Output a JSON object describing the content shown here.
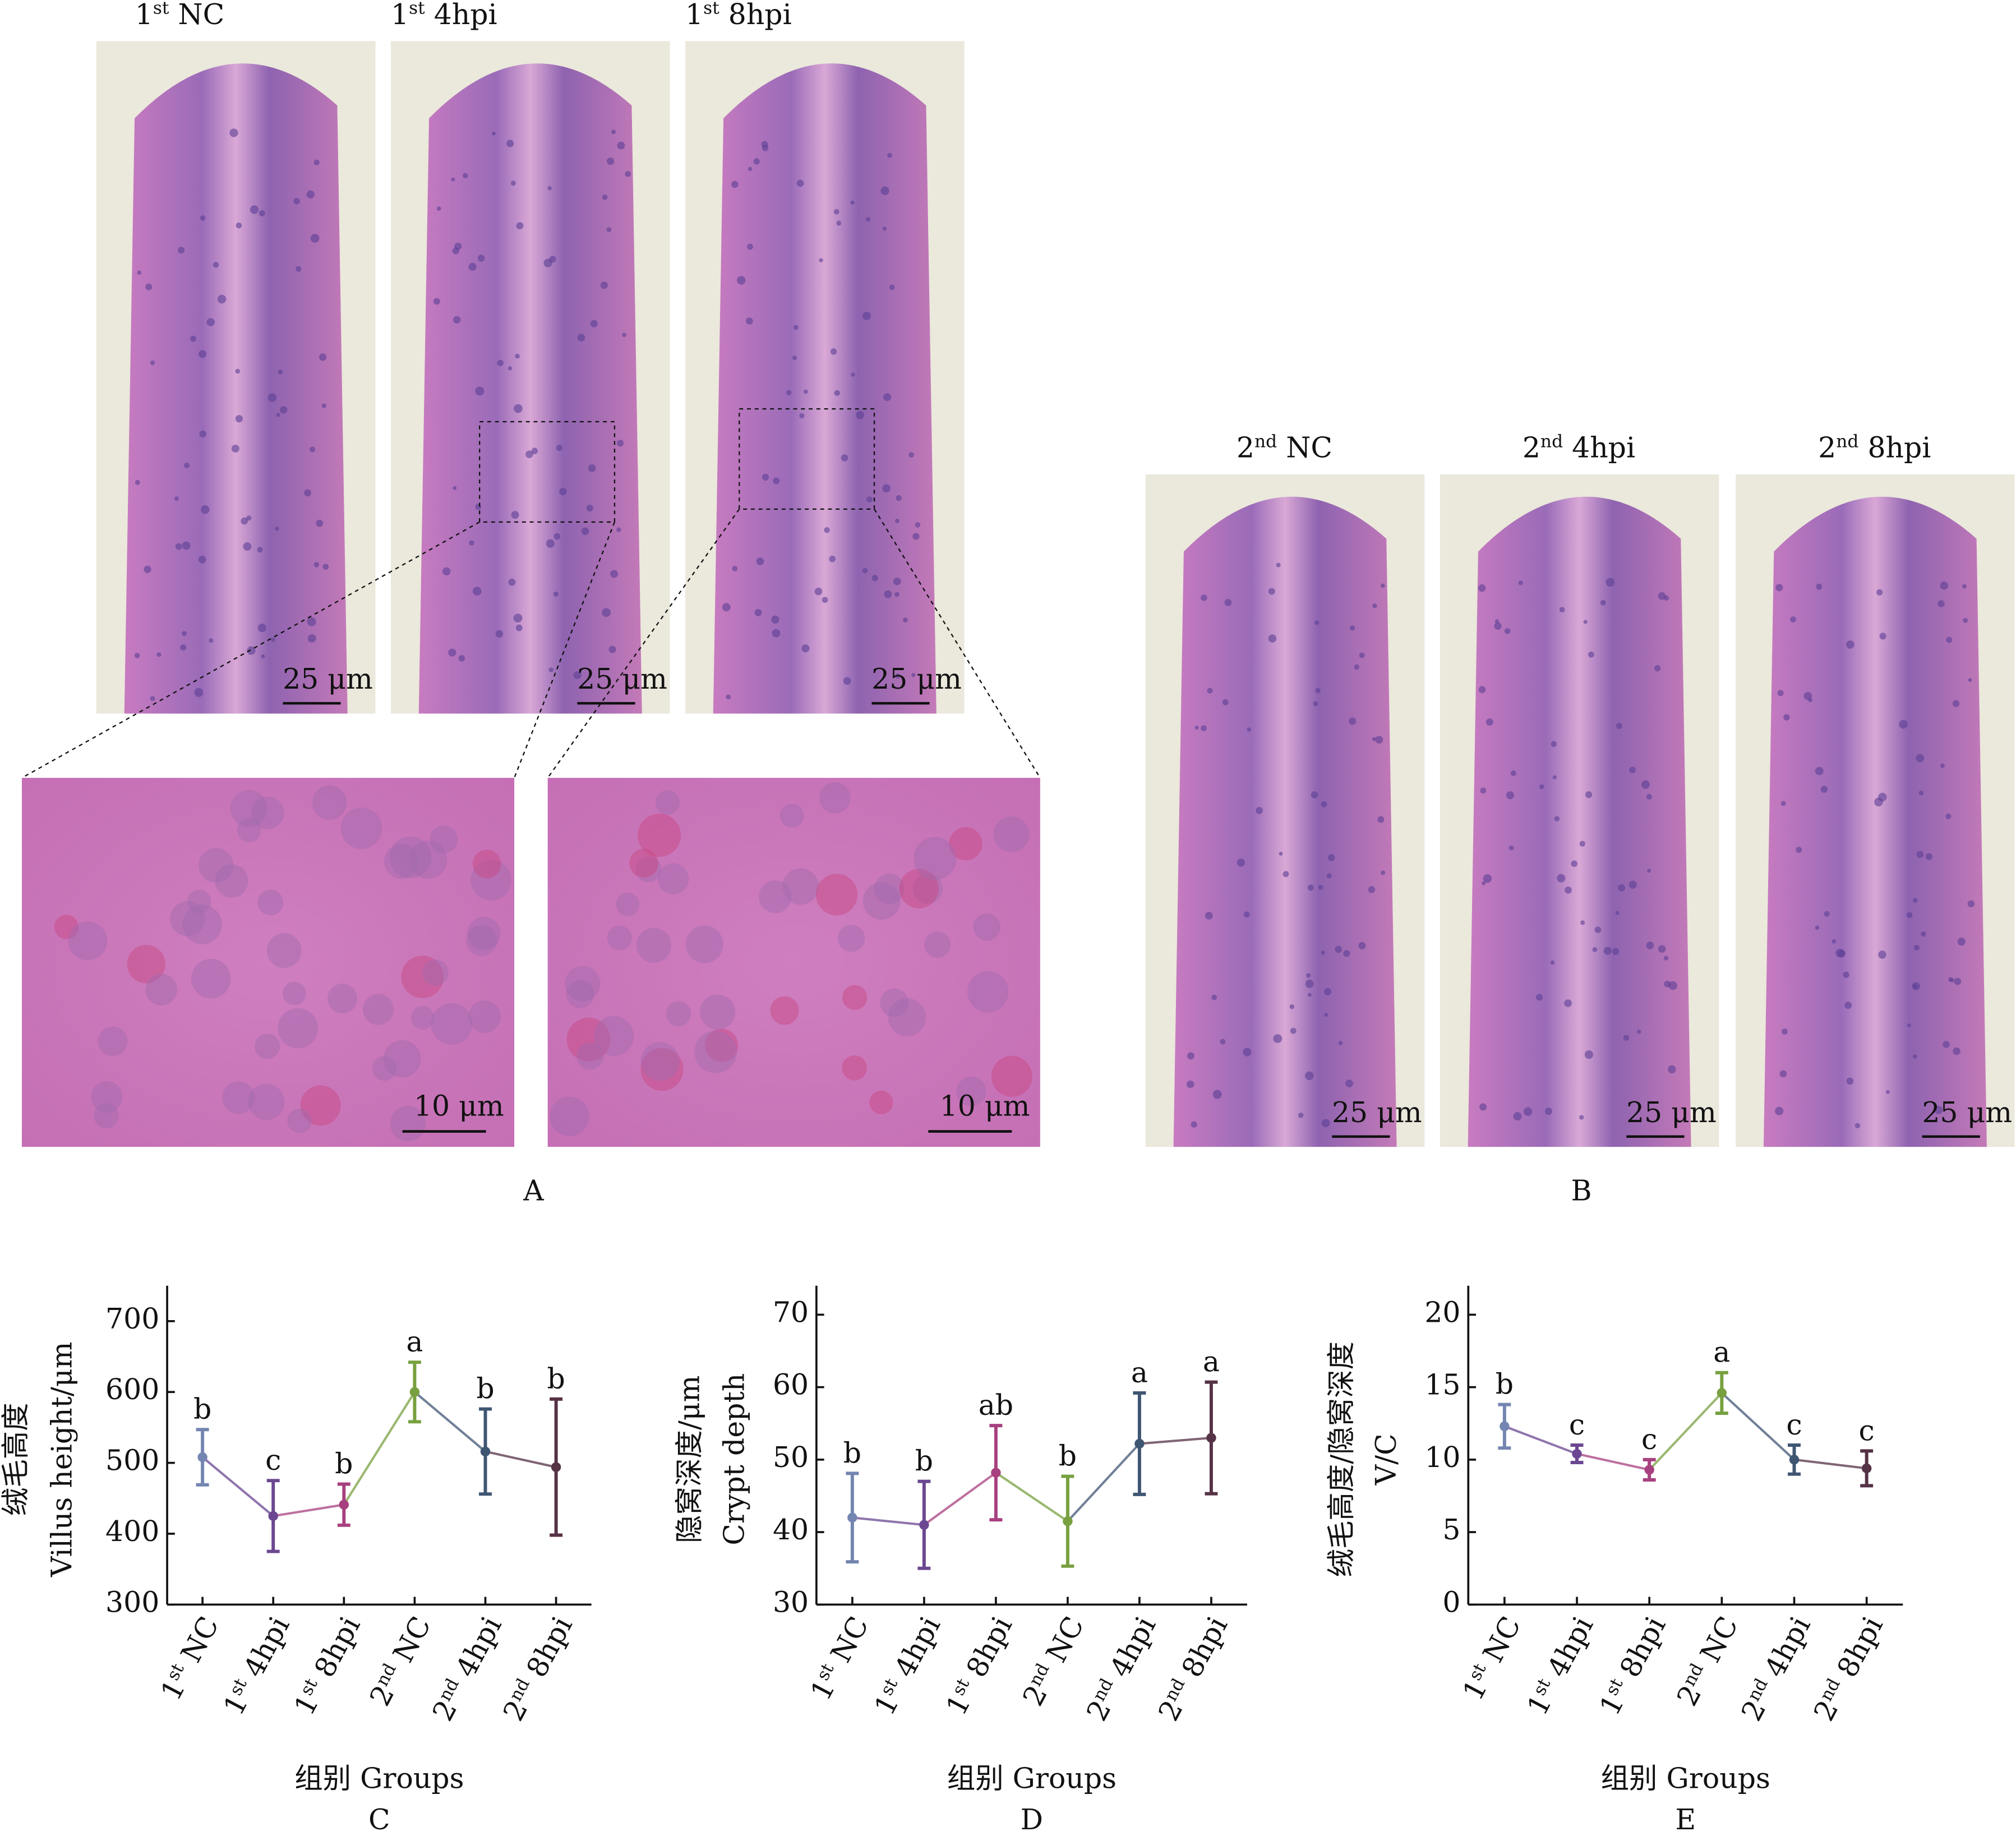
{
  "panels": {
    "A": {
      "label": "A",
      "images": [
        {
          "label": "1st NC",
          "scale": "25 μm"
        },
        {
          "label": "1st 4hpi",
          "scale": "25 μm"
        },
        {
          "label": "1st 8hpi",
          "scale": "25 μm"
        }
      ],
      "zooms": [
        {
          "scale": "10 μm"
        },
        {
          "scale": "10 μm"
        }
      ]
    },
    "B": {
      "label": "B",
      "images": [
        {
          "label": "2nd NC",
          "scale": "25 μm"
        },
        {
          "label": "2nd 4hpi",
          "scale": "25 μm"
        },
        {
          "label": "2nd 8hpi",
          "scale": "25 μm"
        }
      ]
    }
  },
  "chart_data": [
    {
      "type": "line",
      "panel_label": "C",
      "ylabel": [
        "绒毛高度",
        "Villus height/μm"
      ],
      "xlabel": "组别 Groups",
      "categories": [
        "1st NC",
        "1st 4hpi",
        "1st 8hpi",
        "2nd NC",
        "2nd 4hpi",
        "2nd 8hpi"
      ],
      "values": [
        508,
        425,
        441,
        600,
        516,
        494
      ],
      "errors": [
        39,
        50,
        29,
        42,
        60,
        96
      ],
      "letters": [
        "b",
        "c",
        "b",
        "a",
        "b",
        "b"
      ],
      "colors": [
        "#7385b0",
        "#6b4791",
        "#a8407f",
        "#78a040",
        "#3f5673",
        "#563246"
      ],
      "ylim": [
        300,
        750
      ],
      "yticks": [
        300,
        400,
        500,
        600,
        700
      ]
    },
    {
      "type": "line",
      "panel_label": "D",
      "ylabel": [
        "隐窝深度/μm",
        "Crypt depth"
      ],
      "xlabel": "组别 Groups",
      "categories": [
        "1st NC",
        "1st 4hpi",
        "1st 8hpi",
        "2nd NC",
        "2nd 4hpi",
        "2nd 8hpi"
      ],
      "values": [
        42,
        41,
        48.2,
        41.5,
        52.2,
        53
      ],
      "errors": [
        6.1,
        6,
        6.5,
        6.2,
        7,
        7.7
      ],
      "letters": [
        "b",
        "b",
        "ab",
        "b",
        "a",
        "a"
      ],
      "colors": [
        "#7385b0",
        "#6b4791",
        "#a8407f",
        "#78a040",
        "#3f5673",
        "#563246"
      ],
      "ylim": [
        30,
        74
      ],
      "yticks": [
        30,
        40,
        50,
        60,
        70
      ]
    },
    {
      "type": "line",
      "panel_label": "E",
      "ylabel": [
        "绒毛高度/隐窝深度",
        "V/C"
      ],
      "xlabel": "组别 Groups",
      "categories": [
        "1st NC",
        "1st 4hpi",
        "1st 8hpi",
        "2nd NC",
        "2nd 4hpi",
        "2nd 8hpi"
      ],
      "values": [
        12.3,
        10.4,
        9.3,
        14.6,
        10,
        9.4
      ],
      "errors": [
        1.5,
        0.6,
        0.7,
        1.4,
        1,
        1.2
      ],
      "letters": [
        "b",
        "c",
        "c",
        "a",
        "c",
        "c"
      ],
      "colors": [
        "#7385b0",
        "#6b4791",
        "#a8407f",
        "#78a040",
        "#3f5673",
        "#563246"
      ],
      "ylim": [
        0,
        22
      ],
      "yticks": [
        0,
        5,
        10,
        15,
        20
      ]
    }
  ]
}
